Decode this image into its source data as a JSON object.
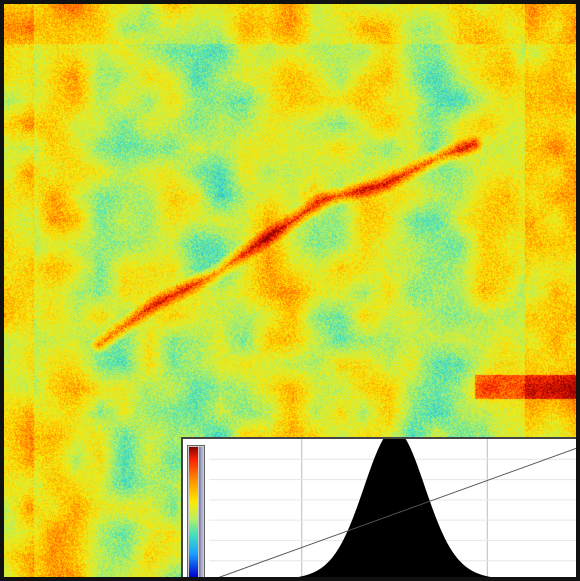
{
  "viewer": {
    "colormap": [
      "#0000d0",
      "#1aa0ff",
      "#3fe0c0",
      "#b8f060",
      "#ffe800",
      "#ff8c00",
      "#ff2200",
      "#8b0000"
    ],
    "background": "#9ed47a",
    "frame_color": "#111111"
  },
  "histogram": {
    "fill_color": "#000000",
    "grid_color": "#bbbbbb",
    "curve_color": "#555555",
    "peak_fraction": 0.5,
    "spread_fraction": 0.08,
    "grid_lines": 2
  }
}
